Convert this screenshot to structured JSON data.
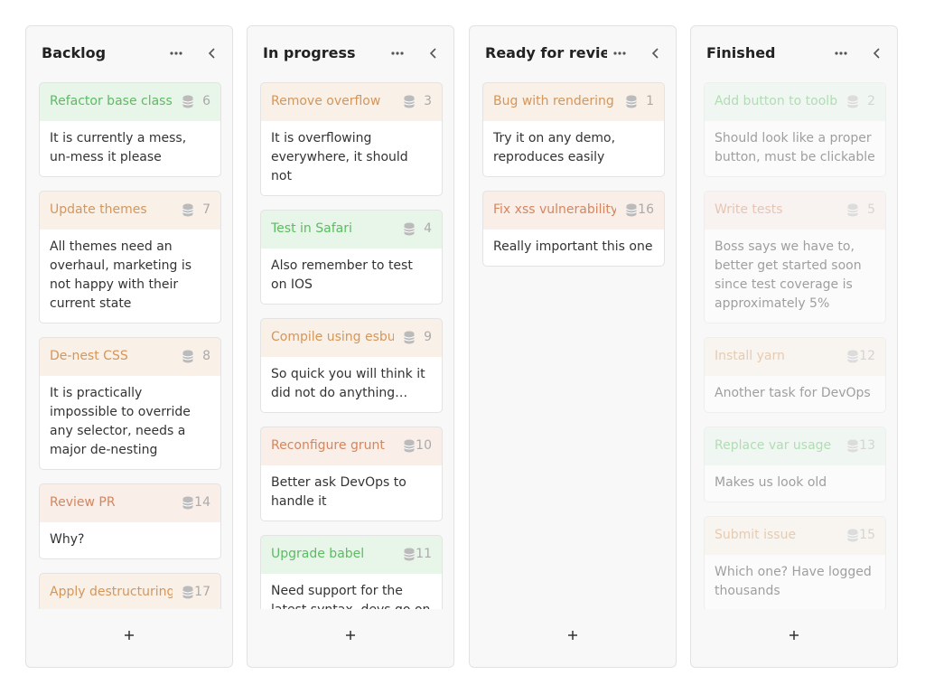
{
  "columns": [
    {
      "title": "Backlog",
      "cards": [
        {
          "title": "Refactor base class",
          "number": 6,
          "color": "#5dbb63",
          "description": "It is currently a mess, un-mess it please"
        },
        {
          "title": "Update themes",
          "number": 7,
          "color": "#d4965a",
          "description": "All themes need an overhaul, marketing is not happy with their current state"
        },
        {
          "title": "De-nest CSS",
          "number": 8,
          "color": "#d4965a",
          "description": "It is practically impossible to override any selector, needs a major de-nesting"
        },
        {
          "title": "Review PR",
          "number": 14,
          "color": "#d4865e",
          "description": "Why?"
        },
        {
          "title": "Apply destructuring",
          "number": 17,
          "color": "#d4965a"
        }
      ]
    },
    {
      "title": "In progress",
      "cards": [
        {
          "title": "Remove overflow",
          "number": 3,
          "color": "#d4965a",
          "description": "It is overflowing everywhere, it should not"
        },
        {
          "title": "Test in Safari",
          "number": 4,
          "color": "#5dbb63",
          "description": "Also remember to test on IOS"
        },
        {
          "title": "Compile using esbuild",
          "number": 9,
          "color": "#d4965a",
          "description": "So quick you will think it did not do anything…"
        },
        {
          "title": "Reconfigure grunt",
          "number": 10,
          "color": "#d4865e",
          "description": "Better ask DevOps to handle it"
        },
        {
          "title": "Upgrade babel",
          "number": 11,
          "color": "#5dbb63",
          "description": "Need support for the latest syntax, devs go on"
        }
      ]
    },
    {
      "title": "Ready for review",
      "cards": [
        {
          "title": "Bug with rendering",
          "number": 1,
          "color": "#d4965a",
          "description": "Try it on any demo, reproduces easily"
        },
        {
          "title": "Fix xss vulnerability",
          "number": 16,
          "color": "#d4865e",
          "description": "Really important this one"
        }
      ]
    },
    {
      "title": "Finished",
      "cards": [
        {
          "title": "Add button to toolbar",
          "number": 2,
          "color": "#5dbb63",
          "description": "Should look like a proper button, must be clickable"
        },
        {
          "title": "Write tests",
          "number": 5,
          "color": "#d4865e",
          "description": "Boss says we have to, better get started soon since test coverage is approximately 5%"
        },
        {
          "title": "Install yarn",
          "number": 12,
          "color": "#d4965a",
          "description": "Another task for DevOps"
        },
        {
          "title": "Replace var usage",
          "number": 13,
          "color": "#5dbb63",
          "description": "Makes us look old"
        },
        {
          "title": "Submit issue",
          "number": 15,
          "color": "#d4965a",
          "description": "Which one? Have logged thousands"
        }
      ]
    }
  ]
}
